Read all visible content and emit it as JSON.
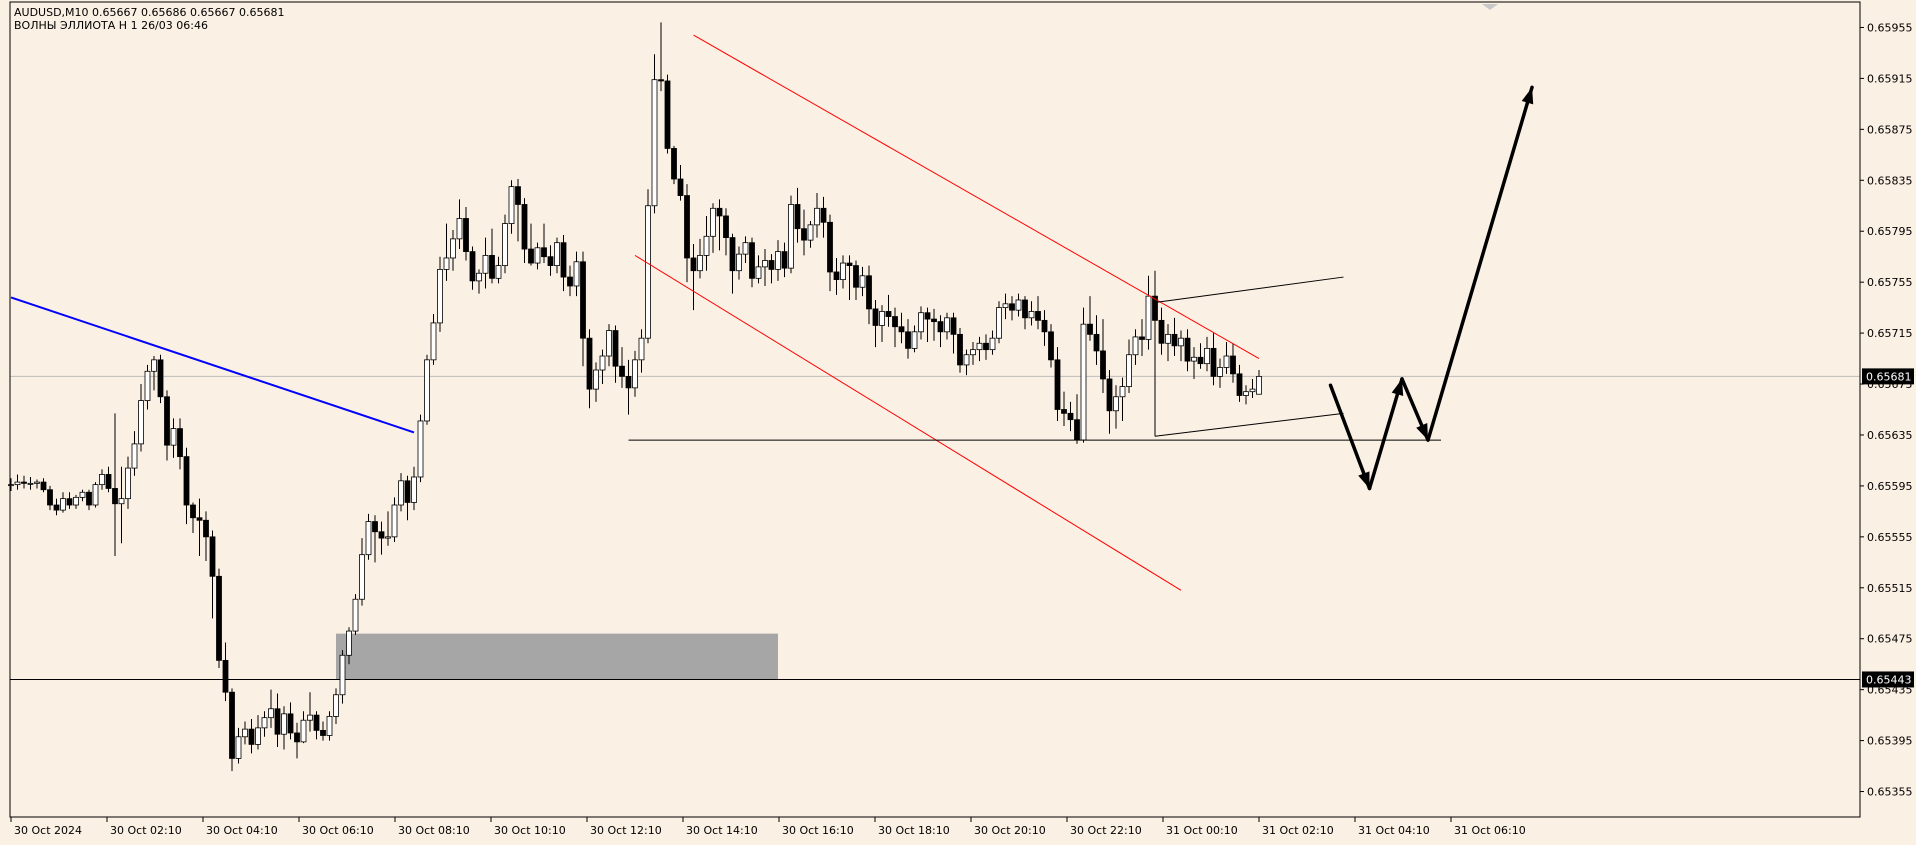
{
  "header": {
    "symbol_line": "AUDUSD,M10  0.65667 0.65686 0.65667 0.65681",
    "indicator_line": "ВОЛНЫ ЭЛЛИОТА Н 1 26/03 06:46"
  },
  "colors": {
    "background": "#FBF0E4",
    "bull_body": "#FFFFFF",
    "bear_body": "#000000",
    "wick": "#000000",
    "trendline": "#0000FF",
    "channel": "#FF0000",
    "zone": "#A6A6A6"
  },
  "price_labels": {
    "current": "0.65681",
    "level": "0.65443"
  },
  "chart_data": {
    "type": "candlestick",
    "symbol": "AUDUSD",
    "timeframe": "M10",
    "ylim": [
      0.65335,
      0.65975
    ],
    "y_ticks": [
      "0.65955",
      "0.65915",
      "0.65875",
      "0.65835",
      "0.65795",
      "0.65755",
      "0.65715",
      "0.65675",
      "0.65635",
      "0.65595",
      "0.65555",
      "0.65515",
      "0.65475",
      "0.65435",
      "0.65395",
      "0.65355"
    ],
    "x_ticks": [
      "30 Oct 2024",
      "30 Oct 02:10",
      "30 Oct 04:10",
      "30 Oct 06:10",
      "30 Oct 08:10",
      "30 Oct 10:10",
      "30 Oct 12:10",
      "30 Oct 14:10",
      "30 Oct 16:10",
      "30 Oct 18:10",
      "30 Oct 20:10",
      "30 Oct 22:10",
      "31 Oct 00:10",
      "31 Oct 02:10",
      "31 Oct 04:10",
      "31 Oct 06:10"
    ],
    "candles": [
      [
        0.65596,
        0.65601,
        0.65591,
        0.65596
      ],
      [
        0.65596,
        0.65604,
        0.65592,
        0.65598
      ],
      [
        0.65598,
        0.65603,
        0.65593,
        0.65597
      ],
      [
        0.65597,
        0.65602,
        0.65592,
        0.65597
      ],
      [
        0.65597,
        0.656,
        0.65593,
        0.65598
      ],
      [
        0.65598,
        0.65601,
        0.6559,
        0.65592
      ],
      [
        0.65592,
        0.65595,
        0.65576,
        0.6558
      ],
      [
        0.6558,
        0.65585,
        0.65572,
        0.65576
      ],
      [
        0.65576,
        0.6559,
        0.65574,
        0.65585
      ],
      [
        0.65585,
        0.6559,
        0.65577,
        0.6558
      ],
      [
        0.6558,
        0.65588,
        0.65577,
        0.65586
      ],
      [
        0.65586,
        0.65592,
        0.65583,
        0.6559
      ],
      [
        0.6559,
        0.65592,
        0.65576,
        0.6558
      ],
      [
        0.6558,
        0.65598,
        0.65578,
        0.65596
      ],
      [
        0.65596,
        0.65608,
        0.65592,
        0.65604
      ],
      [
        0.65604,
        0.6561,
        0.6559,
        0.65593
      ],
      [
        0.65593,
        0.65652,
        0.6554,
        0.65581
      ],
      [
        0.65581,
        0.6561,
        0.6555,
        0.65585
      ],
      [
        0.65585,
        0.65618,
        0.65577,
        0.65609
      ],
      [
        0.65609,
        0.65638,
        0.65603,
        0.65628
      ],
      [
        0.65628,
        0.65675,
        0.65622,
        0.65662
      ],
      [
        0.65662,
        0.6569,
        0.65655,
        0.65685
      ],
      [
        0.65685,
        0.65697,
        0.6567,
        0.65694
      ],
      [
        0.65694,
        0.65698,
        0.6566,
        0.65665
      ],
      [
        0.65665,
        0.6567,
        0.65615,
        0.65627
      ],
      [
        0.65627,
        0.65648,
        0.65617,
        0.6564
      ],
      [
        0.6564,
        0.65648,
        0.65608,
        0.65618
      ],
      [
        0.65618,
        0.65625,
        0.65565,
        0.6558
      ],
      [
        0.6558,
        0.65582,
        0.65558,
        0.6557
      ],
      [
        0.6557,
        0.65585,
        0.6554,
        0.65568
      ],
      [
        0.65568,
        0.65575,
        0.65536,
        0.65555
      ],
      [
        0.65555,
        0.6556,
        0.65491,
        0.65524
      ],
      [
        0.65524,
        0.6553,
        0.65452,
        0.65458
      ],
      [
        0.65458,
        0.65472,
        0.65426,
        0.65433
      ],
      [
        0.65433,
        0.65436,
        0.65371,
        0.65381
      ],
      [
        0.65381,
        0.65405,
        0.65377,
        0.65398
      ],
      [
        0.65398,
        0.6541,
        0.65392,
        0.65404
      ],
      [
        0.65404,
        0.65412,
        0.65385,
        0.65392
      ],
      [
        0.65392,
        0.65415,
        0.65388,
        0.65405
      ],
      [
        0.65405,
        0.65418,
        0.65398,
        0.65413
      ],
      [
        0.65413,
        0.65435,
        0.65405,
        0.6542
      ],
      [
        0.6542,
        0.65432,
        0.6539,
        0.654
      ],
      [
        0.654,
        0.65422,
        0.65388,
        0.65416
      ],
      [
        0.65416,
        0.65425,
        0.65396,
        0.65401
      ],
      [
        0.65401,
        0.65409,
        0.65381,
        0.65394
      ],
      [
        0.65394,
        0.65418,
        0.65393,
        0.65411
      ],
      [
        0.65411,
        0.65433,
        0.65402,
        0.65415
      ],
      [
        0.65415,
        0.65418,
        0.65396,
        0.65403
      ],
      [
        0.65403,
        0.6541,
        0.65395,
        0.65399
      ],
      [
        0.65399,
        0.65418,
        0.65395,
        0.65414
      ],
      [
        0.65414,
        0.65436,
        0.65408,
        0.65431
      ],
      [
        0.65431,
        0.65466,
        0.65424,
        0.65462
      ],
      [
        0.65462,
        0.65484,
        0.65455,
        0.65481
      ],
      [
        0.65481,
        0.6551,
        0.65478,
        0.65506
      ],
      [
        0.65506,
        0.65554,
        0.65501,
        0.65541
      ],
      [
        0.65541,
        0.65573,
        0.65537,
        0.65567
      ],
      [
        0.65567,
        0.65572,
        0.65535,
        0.65559
      ],
      [
        0.65559,
        0.65567,
        0.65541,
        0.65554
      ],
      [
        0.65554,
        0.65575,
        0.65548,
        0.65555
      ],
      [
        0.65555,
        0.65586,
        0.65551,
        0.6558
      ],
      [
        0.6558,
        0.65605,
        0.65575,
        0.65599
      ],
      [
        0.65599,
        0.65603,
        0.65568,
        0.65582
      ],
      [
        0.65582,
        0.6561,
        0.65576,
        0.65602
      ],
      [
        0.65602,
        0.65651,
        0.65598,
        0.65646
      ],
      [
        0.65646,
        0.65698,
        0.65643,
        0.65694
      ],
      [
        0.65694,
        0.6573,
        0.6569,
        0.65723
      ],
      [
        0.65723,
        0.65775,
        0.65716,
        0.65765
      ],
      [
        0.65765,
        0.65801,
        0.65756,
        0.65774
      ],
      [
        0.65774,
        0.65796,
        0.65764,
        0.65789
      ],
      [
        0.65789,
        0.6582,
        0.65781,
        0.65805
      ],
      [
        0.65805,
        0.65814,
        0.65772,
        0.65779
      ],
      [
        0.65779,
        0.65783,
        0.65749,
        0.65756
      ],
      [
        0.65756,
        0.65765,
        0.65746,
        0.65762
      ],
      [
        0.65762,
        0.6579,
        0.6575,
        0.65776
      ],
      [
        0.65776,
        0.65797,
        0.65754,
        0.65758
      ],
      [
        0.65758,
        0.65775,
        0.65754,
        0.65768
      ],
      [
        0.65768,
        0.65808,
        0.65762,
        0.65801
      ],
      [
        0.65801,
        0.65835,
        0.65793,
        0.6583
      ],
      [
        0.6583,
        0.65836,
        0.65787,
        0.65816
      ],
      [
        0.65816,
        0.65821,
        0.6577,
        0.65781
      ],
      [
        0.65781,
        0.65801,
        0.65768,
        0.6577
      ],
      [
        0.6577,
        0.65786,
        0.65765,
        0.65782
      ],
      [
        0.65782,
        0.65801,
        0.6577,
        0.65775
      ],
      [
        0.65775,
        0.65784,
        0.6576,
        0.65768
      ],
      [
        0.65768,
        0.6579,
        0.65762,
        0.65786
      ],
      [
        0.65786,
        0.65792,
        0.65748,
        0.65759
      ],
      [
        0.65759,
        0.65768,
        0.65744,
        0.65752
      ],
      [
        0.65752,
        0.65779,
        0.65744,
        0.65771
      ],
      [
        0.65771,
        0.65779,
        0.65689,
        0.65711
      ],
      [
        0.65711,
        0.65718,
        0.65656,
        0.65671
      ],
      [
        0.65671,
        0.65692,
        0.65661,
        0.65686
      ],
      [
        0.65686,
        0.65702,
        0.65675,
        0.65697
      ],
      [
        0.65697,
        0.65722,
        0.65689,
        0.65717
      ],
      [
        0.65717,
        0.65721,
        0.65676,
        0.65689
      ],
      [
        0.65689,
        0.65704,
        0.65672,
        0.65681
      ],
      [
        0.65681,
        0.65694,
        0.65651,
        0.65672
      ],
      [
        0.65672,
        0.65701,
        0.65665,
        0.65694
      ],
      [
        0.65694,
        0.65718,
        0.65684,
        0.65711
      ],
      [
        0.65711,
        0.65828,
        0.65707,
        0.65815
      ],
      [
        0.65815,
        0.65934,
        0.65809,
        0.65914
      ],
      [
        0.65914,
        0.65959,
        0.65905,
        0.65913
      ],
      [
        0.65913,
        0.65918,
        0.65856,
        0.6586
      ],
      [
        0.6586,
        0.65862,
        0.65832,
        0.65836
      ],
      [
        0.65836,
        0.65847,
        0.65819,
        0.65823
      ],
      [
        0.65823,
        0.65832,
        0.65755,
        0.65774
      ],
      [
        0.65774,
        0.65785,
        0.65733,
        0.65764
      ],
      [
        0.65764,
        0.65789,
        0.65758,
        0.65776
      ],
      [
        0.65776,
        0.65807,
        0.65764,
        0.65791
      ],
      [
        0.65791,
        0.65817,
        0.65778,
        0.65813
      ],
      [
        0.65813,
        0.6582,
        0.6578,
        0.65807
      ],
      [
        0.65807,
        0.65813,
        0.65776,
        0.6579
      ],
      [
        0.6579,
        0.65793,
        0.65746,
        0.65764
      ],
      [
        0.65764,
        0.65783,
        0.65757,
        0.65777
      ],
      [
        0.65777,
        0.65791,
        0.6577,
        0.65786
      ],
      [
        0.65786,
        0.6579,
        0.65751,
        0.65758
      ],
      [
        0.65758,
        0.65776,
        0.65754,
        0.65767
      ],
      [
        0.65767,
        0.65781,
        0.65752,
        0.65772
      ],
      [
        0.65772,
        0.65777,
        0.65754,
        0.65765
      ],
      [
        0.65765,
        0.65788,
        0.65756,
        0.65779
      ],
      [
        0.65779,
        0.65786,
        0.65759,
        0.65766
      ],
      [
        0.65766,
        0.65823,
        0.65762,
        0.65816
      ],
      [
        0.65816,
        0.65829,
        0.65786,
        0.65797
      ],
      [
        0.65797,
        0.65812,
        0.65776,
        0.65788
      ],
      [
        0.65788,
        0.65803,
        0.65782,
        0.658
      ],
      [
        0.658,
        0.65825,
        0.6579,
        0.65813
      ],
      [
        0.65813,
        0.65822,
        0.6579,
        0.65802
      ],
      [
        0.65802,
        0.65808,
        0.65748,
        0.65763
      ],
      [
        0.65763,
        0.65774,
        0.65745,
        0.65757
      ],
      [
        0.65757,
        0.65776,
        0.6575,
        0.6577
      ],
      [
        0.6577,
        0.65776,
        0.65741,
        0.65768
      ],
      [
        0.65768,
        0.65772,
        0.65741,
        0.65751
      ],
      [
        0.65751,
        0.65767,
        0.65744,
        0.6576
      ],
      [
        0.6576,
        0.65768,
        0.65722,
        0.65734
      ],
      [
        0.65734,
        0.65741,
        0.65704,
        0.65721
      ],
      [
        0.65721,
        0.65737,
        0.65708,
        0.65732
      ],
      [
        0.65732,
        0.65745,
        0.6572,
        0.65728
      ],
      [
        0.65728,
        0.65735,
        0.65704,
        0.6572
      ],
      [
        0.6572,
        0.65731,
        0.65707,
        0.65716
      ],
      [
        0.65716,
        0.65726,
        0.65695,
        0.65703
      ],
      [
        0.65703,
        0.65721,
        0.657,
        0.65716
      ],
      [
        0.65716,
        0.65736,
        0.6571,
        0.65731
      ],
      [
        0.65731,
        0.65735,
        0.65708,
        0.65726
      ],
      [
        0.65726,
        0.65734,
        0.65709,
        0.65724
      ],
      [
        0.65724,
        0.65729,
        0.65704,
        0.65716
      ],
      [
        0.65716,
        0.65731,
        0.6571,
        0.65727
      ],
      [
        0.65727,
        0.65731,
        0.65699,
        0.65714
      ],
      [
        0.65714,
        0.65719,
        0.65684,
        0.6569
      ],
      [
        0.6569,
        0.65702,
        0.65682,
        0.65698
      ],
      [
        0.65698,
        0.65708,
        0.6569,
        0.65702
      ],
      [
        0.65702,
        0.65712,
        0.65693,
        0.65707
      ],
      [
        0.65707,
        0.65714,
        0.65694,
        0.65702
      ],
      [
        0.65702,
        0.65717,
        0.65698,
        0.65711
      ],
      [
        0.65711,
        0.6574,
        0.65707,
        0.65735
      ],
      [
        0.65735,
        0.65746,
        0.65726,
        0.65738
      ],
      [
        0.65738,
        0.65744,
        0.65725,
        0.65733
      ],
      [
        0.65733,
        0.65746,
        0.65728,
        0.65741
      ],
      [
        0.65741,
        0.65744,
        0.65718,
        0.65727
      ],
      [
        0.65727,
        0.6574,
        0.65721,
        0.65732
      ],
      [
        0.65732,
        0.65744,
        0.65718,
        0.65725
      ],
      [
        0.65725,
        0.65733,
        0.65705,
        0.65716
      ],
      [
        0.65716,
        0.65722,
        0.65688,
        0.65694
      ],
      [
        0.65694,
        0.65704,
        0.65646,
        0.65655
      ],
      [
        0.65655,
        0.65669,
        0.65642,
        0.65652
      ],
      [
        0.65652,
        0.65661,
        0.65638,
        0.65647
      ],
      [
        0.65647,
        0.65667,
        0.65628,
        0.65631
      ],
      [
        0.65631,
        0.65735,
        0.65629,
        0.65722
      ],
      [
        0.65722,
        0.65744,
        0.65709,
        0.65714
      ],
      [
        0.65714,
        0.65729,
        0.6569,
        0.65701
      ],
      [
        0.65701,
        0.65726,
        0.65668,
        0.65679
      ],
      [
        0.65679,
        0.65686,
        0.65636,
        0.65654
      ],
      [
        0.65654,
        0.65674,
        0.6564,
        0.65665
      ],
      [
        0.65665,
        0.6568,
        0.65646,
        0.65673
      ],
      [
        0.65673,
        0.6571,
        0.65668,
        0.65698
      ],
      [
        0.65698,
        0.65718,
        0.6569,
        0.65712
      ],
      [
        0.65712,
        0.65726,
        0.65697,
        0.6571
      ],
      [
        0.6571,
        0.6576,
        0.65702,
        0.65744
      ],
      [
        0.65744,
        0.65764,
        0.65713,
        0.65725
      ],
      [
        0.65725,
        0.65735,
        0.65698,
        0.65707
      ],
      [
        0.65707,
        0.65722,
        0.65693,
        0.65714
      ],
      [
        0.65714,
        0.65727,
        0.65697,
        0.65705
      ],
      [
        0.65705,
        0.65717,
        0.65693,
        0.65711
      ],
      [
        0.65711,
        0.65718,
        0.65685,
        0.65693
      ],
      [
        0.65693,
        0.65704,
        0.65679,
        0.65696
      ],
      [
        0.65696,
        0.65707,
        0.65687,
        0.65691
      ],
      [
        0.65691,
        0.65712,
        0.65685,
        0.65703
      ],
      [
        0.65703,
        0.65715,
        0.65674,
        0.65681
      ],
      [
        0.65681,
        0.65695,
        0.65672,
        0.65688
      ],
      [
        0.65688,
        0.65708,
        0.65683,
        0.65697
      ],
      [
        0.65697,
        0.65707,
        0.65676,
        0.65683
      ],
      [
        0.65683,
        0.6569,
        0.65661,
        0.65666
      ],
      [
        0.65666,
        0.65674,
        0.65659,
        0.65669
      ],
      [
        0.65669,
        0.65679,
        0.65664,
        0.65671
      ],
      [
        0.65667,
        0.65686,
        0.65667,
        0.65681
      ]
    ],
    "current_price": 0.65681,
    "levels": [
      0.65443
    ],
    "zone": {
      "bar_start": 50,
      "bar_end": 118,
      "low": 0.65443,
      "high": 0.65479
    },
    "trendlines": [
      {
        "kind": "trend",
        "p1": [
          0,
          0.65743
        ],
        "p2": [
          62,
          0.65637
        ]
      },
      {
        "kind": "channel",
        "p1": [
          105,
          0.65949
        ],
        "p2": [
          192,
          0.65695
        ]
      },
      {
        "kind": "channel",
        "p1": [
          96,
          0.65776
        ],
        "p2": [
          180,
          0.65513
        ]
      },
      {
        "kind": "horizontal",
        "p1": [
          95,
          0.65631
        ],
        "p2": [
          220,
          0.65631
        ]
      },
      {
        "kind": "pattern",
        "p1": [
          176,
          0.65739
        ],
        "p2": [
          205,
          0.65759
        ]
      },
      {
        "kind": "pattern",
        "p1": [
          176,
          0.65634
        ],
        "p2": [
          205,
          0.65652
        ]
      }
    ],
    "projection": [
      [
        203,
        0.65674
      ],
      [
        209,
        0.65593
      ],
      [
        214,
        0.65679
      ],
      [
        218,
        0.65631
      ],
      [
        234,
        0.65908
      ]
    ]
  }
}
